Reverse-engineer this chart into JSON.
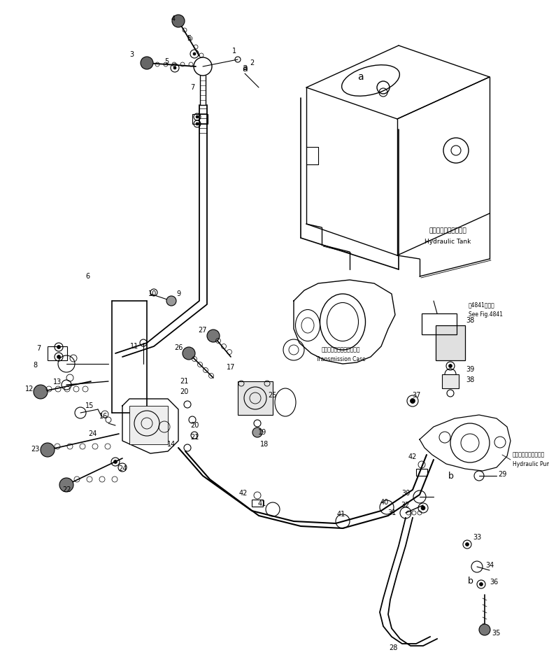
{
  "bg_color": "#ffffff",
  "line_color": "#000000",
  "fig_width": 7.85,
  "fig_height": 9.59,
  "dpi": 100,
  "hydraulic_tank_label_jp": "ハイドロリックタンク",
  "hydraulic_tank_label_en": "Hydraulic Tank",
  "transmission_case_label_jp": "トランスミッションケース",
  "transmission_case_label_en": "Transmission Case",
  "hydraulic_pump_label_jp": "ハイドロリックポンプ",
  "hydraulic_pump_label_en": "Hydraulic Pump",
  "see_fig_label_jp": "第4841図参照",
  "see_fig_label_en": "See Fig.4841"
}
